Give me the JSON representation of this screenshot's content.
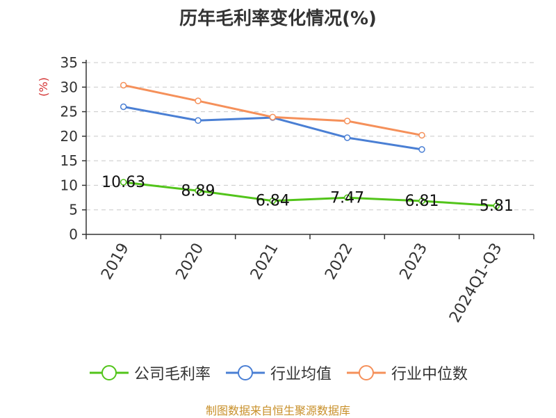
{
  "chart_data": {
    "type": "line",
    "title": "历年毛利率变化情况(%)",
    "ylabel": "(%)",
    "categories": [
      "2019",
      "2020",
      "2021",
      "2022",
      "2023",
      "2024Q1-Q3"
    ],
    "ylim": [
      0,
      35
    ],
    "yticks": [
      0,
      5,
      10,
      15,
      20,
      25,
      30,
      35
    ],
    "grid": true,
    "legend_position": "bottom",
    "series": [
      {
        "name": "公司毛利率",
        "color": "#52c41a",
        "values": [
          10.63,
          8.89,
          6.84,
          7.47,
          6.81,
          5.81
        ],
        "labels": [
          "10.63",
          "8.89",
          "6.84",
          "7.47",
          "6.81",
          "5.81"
        ]
      },
      {
        "name": "行业均值",
        "color": "#4a7fd4",
        "values": [
          26.0,
          23.2,
          23.8,
          19.7,
          17.3,
          null
        ]
      },
      {
        "name": "行业中位数",
        "color": "#f5905a",
        "values": [
          30.4,
          27.2,
          23.9,
          23.1,
          20.2,
          null
        ]
      }
    ]
  },
  "source": "制图数据来自恒生聚源数据库"
}
